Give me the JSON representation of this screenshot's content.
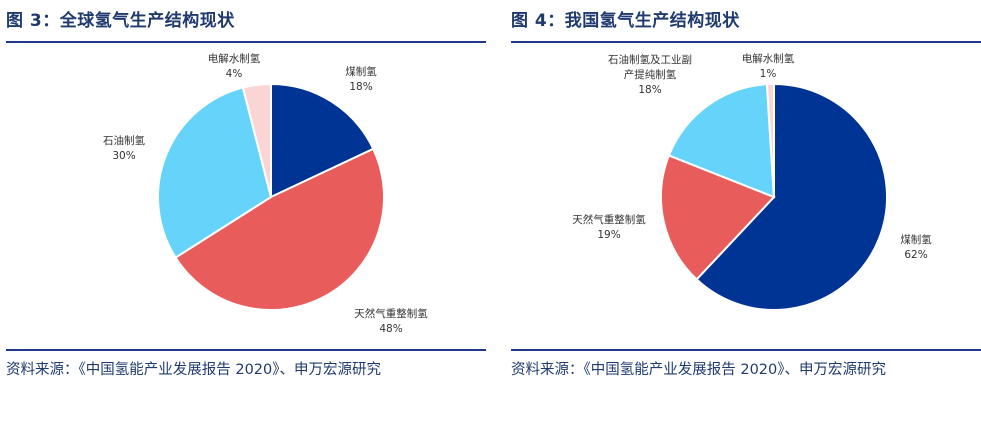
{
  "chart_data": [
    {
      "type": "pie",
      "title": "图 3：全球氢气生产结构现状",
      "source": "资料来源：《中国氢能产业发展报告 2020》、申万宏源研究",
      "slices": [
        {
          "name": "煤制氢",
          "pct_label": "18%",
          "value": 18,
          "color": "#003494"
        },
        {
          "name": "天然气重整制氢",
          "pct_label": "48%",
          "value": 48,
          "color": "#e85c5c"
        },
        {
          "name": "石油制氢",
          "pct_label": "30%",
          "value": 30,
          "color": "#66d3fa"
        },
        {
          "name": "电解水制氢",
          "pct_label": "4%",
          "value": 4,
          "color": "#fbd5d5"
        }
      ]
    },
    {
      "type": "pie",
      "title": "图 4：我国氢气生产结构现状",
      "source": "资料来源：《中国氢能产业发展报告 2020》、申万宏源研究",
      "slices": [
        {
          "name": "煤制氢",
          "pct_label": "62%",
          "value": 62,
          "color": "#003494"
        },
        {
          "name": "天然气重整制氢",
          "pct_label": "19%",
          "value": 19,
          "color": "#e85c5c"
        },
        {
          "name": "石油制氢及工业副产提纯制氢",
          "name_lines": [
            "石油制氢及工业副",
            "产提纯制氢"
          ],
          "pct_label": "18%",
          "value": 18,
          "color": "#66d3fa"
        },
        {
          "name": "电解水制氢",
          "pct_label": "1%",
          "value": 1,
          "color": "#fbd5d5"
        }
      ]
    }
  ]
}
